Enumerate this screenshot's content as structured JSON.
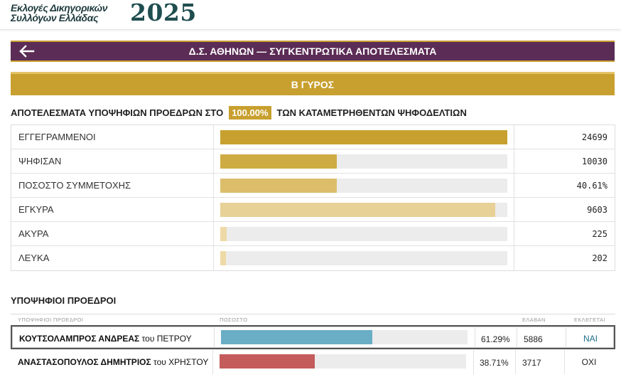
{
  "header": {
    "logo_line1": "Εκλογές Δικηγορικών",
    "logo_line2": "Συλλόγων Ελλάδας",
    "logo_year": "2025"
  },
  "title_bar": {
    "back_icon": "arrow-left-icon",
    "title": "Δ.Σ. ΑΘΗΝΩΝ — ΣΥΓΚΕΝΤΡΩΤΙΚΑ ΑΠΟΤΕΛΕΣΜΑΤΑ"
  },
  "round": {
    "label": "Β ΓΥΡΟΣ"
  },
  "results_heading": {
    "prefix": "ΑΠΟΤΕΛΕΣΜΑΤΑ ΥΠΟΨΗΦΙΩΝ ΠΡΟΕΔΡΩΝ ΣΤΟ",
    "percentage": "100.00%",
    "suffix": "ΤΩΝ ΚΑΤΑΜΕΤΡΗΘΕΝΤΩΝ ΨΗΦΟΔΕΛΤΙΩΝ"
  },
  "stats": [
    {
      "label": "ΕΓΓΕΓΡΑΜΜΕΝΟΙ",
      "value": "24699",
      "fill_fraction": 1.0,
      "color": "#c8a02f"
    },
    {
      "label": "ΨΗΦΙΣΑΝ",
      "value": "10030",
      "fill_fraction": 0.4061,
      "color": "#cfab43"
    },
    {
      "label": "ΠΟΣΟΣΤΟ ΣΥΜΜΕΤΟΧΗΣ",
      "value": "40.61%",
      "fill_fraction": 0.4061,
      "color": "#dcbd6a"
    },
    {
      "label": "ΕΓΚΥΡΑ",
      "value": "9603",
      "fill_fraction": 0.9574,
      "color": "#e8d197"
    },
    {
      "label": "ΑΚΥΡΑ",
      "value": "225",
      "fill_fraction": 0.0224,
      "color": "#eedaa6"
    },
    {
      "label": "ΛΕΥΚΑ",
      "value": "202",
      "fill_fraction": 0.0201,
      "color": "#eedaa6"
    }
  ],
  "candidates_section": {
    "heading": "ΥΠΟΨΗΦΙΟΙ ΠΡΟΕΔΡΟΙ",
    "col_candidates": "ΥΠΟΨΗΦΙΟΙ ΠΡΟΕΔΡΟΙ",
    "col_percentage": "ΠΟΣΟΣΤΟ",
    "col_votes": "ΕΛΑΒΑΝ",
    "col_elected": "ΕΚΛΕΓΕΤΑΙ"
  },
  "candidates": [
    {
      "surname_first": "ΚΟΥΤΣΟΛΑΜΠΡΟΣ ΑΝΔΡΕΑΣ",
      "patronymic": "του ΠΕΤΡΟΥ",
      "percentage": "61.29%",
      "fill_fraction": 0.6129,
      "votes": "5886",
      "elected": "ΝΑΙ",
      "bar_color": "#6aaec6",
      "elected_color": "#1e6f8c"
    },
    {
      "surname_first": "ΑΝΑΣΤΑΣΟΠΟΥΛΟΣ ΔΗΜΗΤΡΙΟΣ",
      "patronymic": "του ΧΡΗΣΤΟΥ",
      "percentage": "38.71%",
      "fill_fraction": 0.3871,
      "votes": "3717",
      "elected": "ΟΧΙ",
      "bar_color": "#c45c5c",
      "elected_color": "#222222"
    }
  ]
}
